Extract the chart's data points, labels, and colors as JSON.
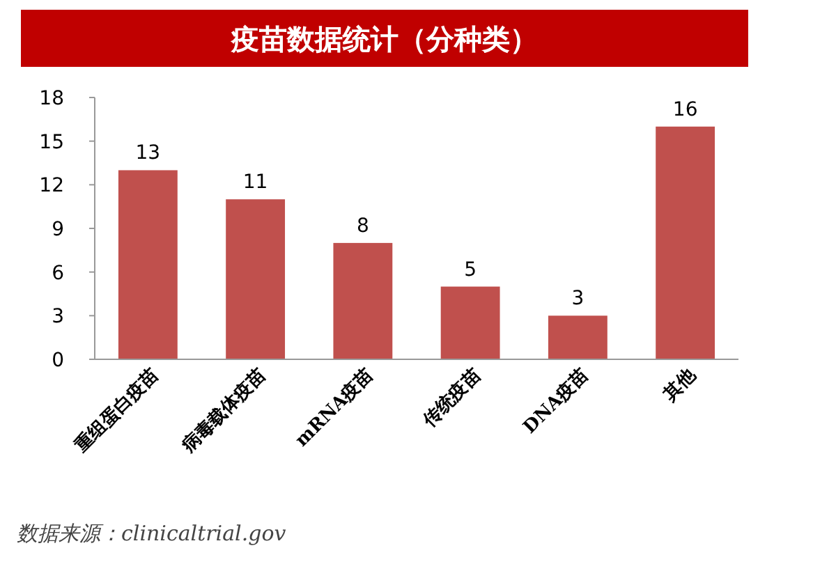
{
  "chart_data": {
    "type": "bar",
    "title": "疫苗数据统计（分种类）",
    "categories": [
      "重组蛋白疫苗",
      "病毒载体疫苗",
      "mRNA疫苗",
      "传统疫苗",
      "DNA疫苗",
      "其他"
    ],
    "values": [
      13,
      11,
      8,
      5,
      3,
      16
    ],
    "color": "#c0504d",
    "data_labels": true,
    "ylim": [
      0,
      18
    ],
    "yticks": [
      0,
      3,
      6,
      9,
      12,
      15,
      18
    ],
    "grid": false,
    "annotations": [
      "数据来源：clinicaltrial.gov"
    ]
  }
}
